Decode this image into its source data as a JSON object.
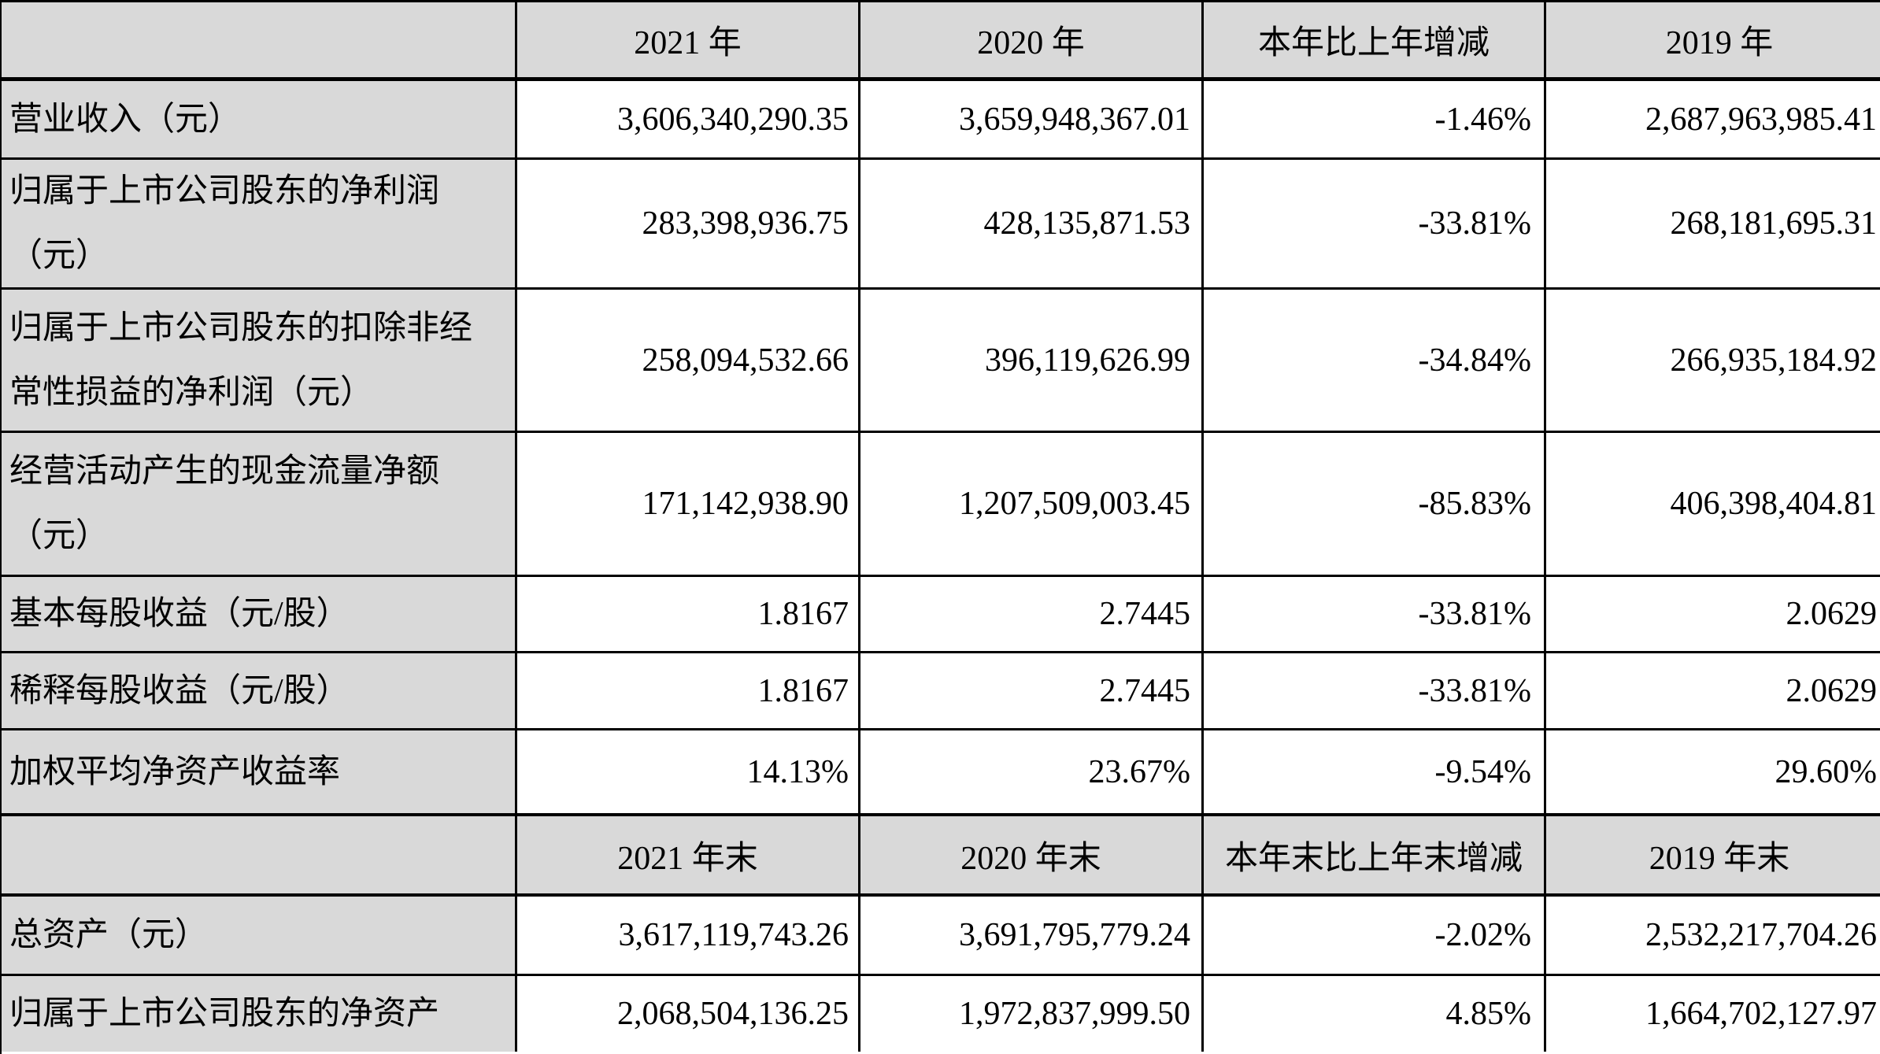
{
  "colors": {
    "header_bg": "#d9d9d9",
    "label_col_bg": "#d9d9d9",
    "data_cell_bg": "#ffffff",
    "border": "#000000",
    "text": "#000000"
  },
  "table": {
    "period_header": {
      "blank": "",
      "y2021": "2021 年",
      "y2020": "2020 年",
      "change": "本年比上年增减",
      "y2019": "2019 年"
    },
    "metric_rows": [
      {
        "label": "营业收入（元）",
        "y2021": "3,606,340,290.35",
        "y2020": "3,659,948,367.01",
        "change": "-1.46%",
        "y2019": "2,687,963,985.41"
      },
      {
        "label": "归属于上市公司股东的净利润\n（元）",
        "y2021": "283,398,936.75",
        "y2020": "428,135,871.53",
        "change": "-33.81%",
        "y2019": "268,181,695.31"
      },
      {
        "label": "归属于上市公司股东的扣除非经\n常性损益的净利润（元）",
        "y2021": "258,094,532.66",
        "y2020": "396,119,626.99",
        "change": "-34.84%",
        "y2019": "266,935,184.92"
      },
      {
        "label": "经营活动产生的现金流量净额\n（元）",
        "y2021": "171,142,938.90",
        "y2020": "1,207,509,003.45",
        "change": "-85.83%",
        "y2019": "406,398,404.81"
      },
      {
        "label": "基本每股收益（元/股）",
        "y2021": "1.8167",
        "y2020": "2.7445",
        "change": "-33.81%",
        "y2019": "2.0629"
      },
      {
        "label": "稀释每股收益（元/股）",
        "y2021": "1.8167",
        "y2020": "2.7445",
        "change": "-33.81%",
        "y2019": "2.0629"
      },
      {
        "label": "加权平均净资产收益率",
        "y2021": "14.13%",
        "y2020": "23.67%",
        "change": "-9.54%",
        "y2019": "29.60%"
      }
    ],
    "period_end_header": {
      "blank": "",
      "y2021": "2021 年末",
      "y2020": "2020 年末",
      "change": "本年末比上年末增减",
      "y2019": "2019 年末"
    },
    "balance_rows": [
      {
        "label": "总资产（元）",
        "y2021": "3,617,119,743.26",
        "y2020": "3,691,795,779.24",
        "change": "-2.02%",
        "y2019": "2,532,217,704.26"
      },
      {
        "label": "归属于上市公司股东的净资产",
        "y2021": "2,068,504,136.25",
        "y2020": "1,972,837,999.50",
        "change": "4.85%",
        "y2019": "1,664,702,127.97"
      }
    ]
  }
}
